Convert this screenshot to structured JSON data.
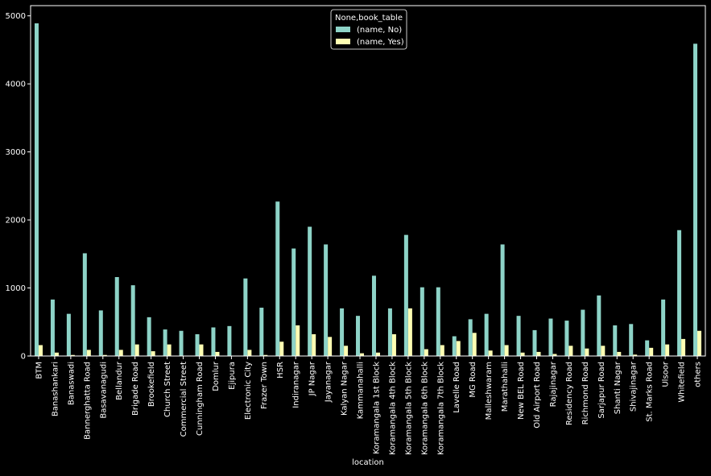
{
  "chart_data": {
    "type": "bar",
    "xlabel": "location",
    "ylabel": "",
    "ylim": [
      0,
      5150
    ],
    "yticks": [
      0,
      1000,
      2000,
      3000,
      4000,
      5000
    ],
    "legend": {
      "title": "None,book_table",
      "placement": "top-center"
    },
    "categories": [
      "BTM",
      "Banashankari",
      "Banaswadi",
      "Bannerghatta Road",
      "Basavanagudi",
      "Bellandur",
      "Brigade Road",
      "Brookefield",
      "Church Street",
      "Commercial Street",
      "Cunningham Road",
      "Domlur",
      "Ejipura",
      "Electronic City",
      "Frazer Town",
      "HSR",
      "Indiranagar",
      "JP Nagar",
      "Jayanagar",
      "Kalyan Nagar",
      "Kammanahalli",
      "Koramangala 1st Block",
      "Koramangala 4th Block",
      "Koramangala 5th Block",
      "Koramangala 6th Block",
      "Koramangala 7th Block",
      "Lavelle Road",
      "MG Road",
      "Malleshwaram",
      "Marathahalli",
      "New BEL Road",
      "Old Airport Road",
      "Rajajinagar",
      "Residency Road",
      "Richmond Road",
      "Sarjapur Road",
      "Shanti Nagar",
      "Shivajinagar",
      "St. Marks Road",
      "Ulsoor",
      "Whitefield",
      "others"
    ],
    "series": [
      {
        "name": "(name, No)",
        "color": "#8dd3c7",
        "values": [
          4890,
          830,
          620,
          1510,
          670,
          1160,
          1040,
          570,
          390,
          370,
          320,
          420,
          440,
          1140,
          710,
          2270,
          1580,
          1900,
          1640,
          700,
          590,
          1180,
          700,
          1780,
          1010,
          1010,
          290,
          540,
          620,
          1640,
          590,
          380,
          550,
          520,
          680,
          890,
          450,
          470,
          230,
          830,
          1850,
          4590
        ]
      },
      {
        "name": "(name, Yes)",
        "color": "#ffffb3",
        "values": [
          160,
          50,
          15,
          90,
          15,
          90,
          170,
          70,
          170,
          0,
          170,
          60,
          0,
          90,
          15,
          210,
          450,
          320,
          280,
          150,
          40,
          50,
          320,
          700,
          100,
          160,
          220,
          340,
          80,
          160,
          50,
          60,
          30,
          150,
          110,
          150,
          60,
          20,
          120,
          170,
          250,
          370
        ]
      }
    ]
  }
}
